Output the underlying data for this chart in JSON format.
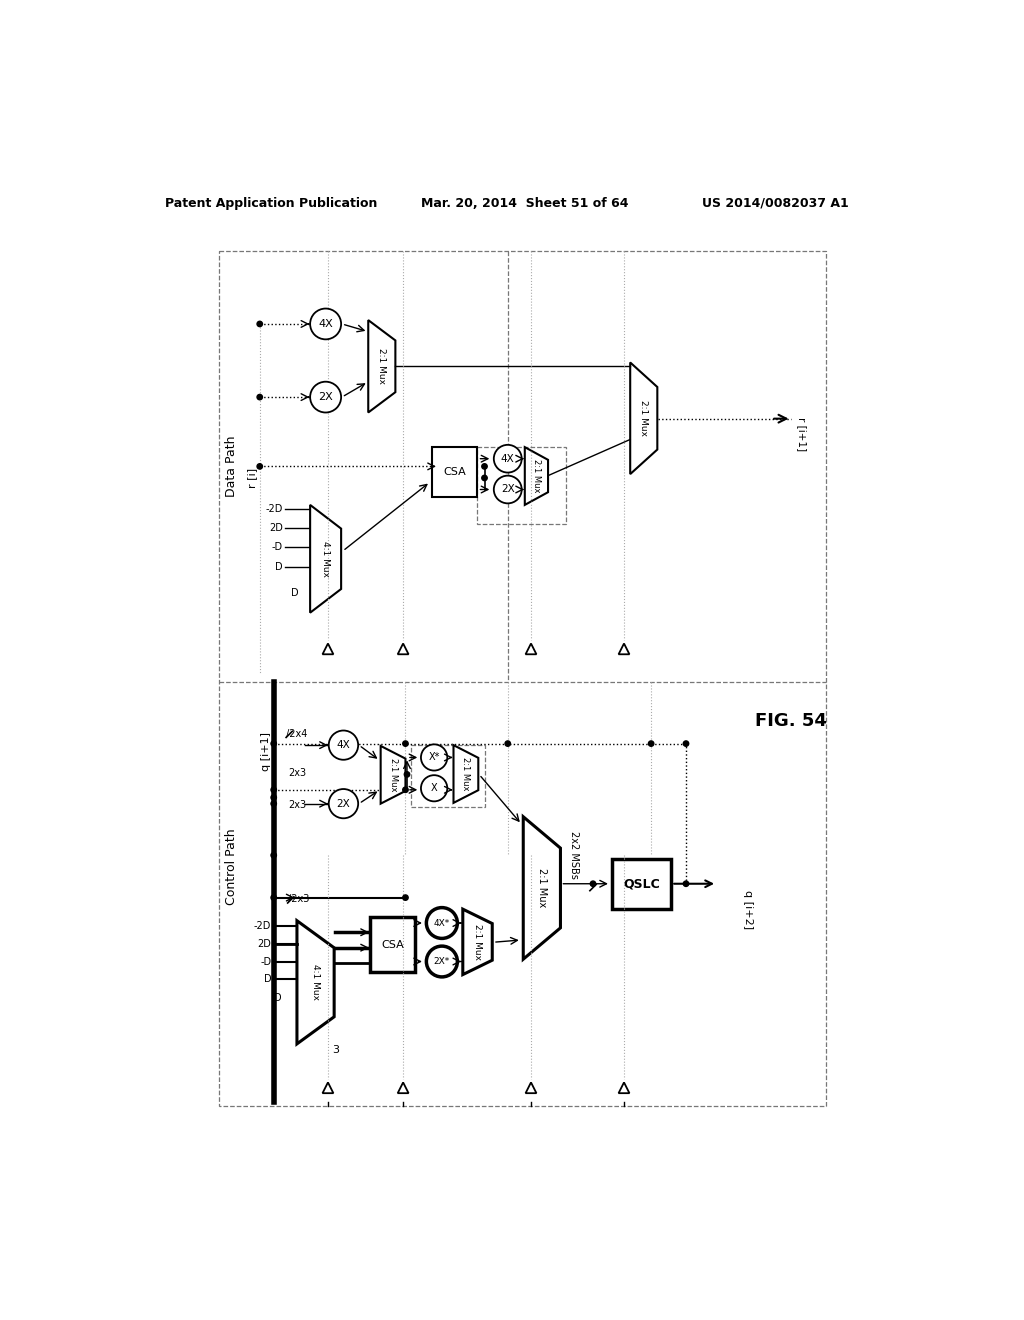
{
  "title_left": "Patent Application Publication",
  "title_mid": "Mar. 20, 2014  Sheet 51 of 64",
  "title_right": "US 2014/0082037 A1",
  "fig_label": "FIG. 54",
  "bg_color": "#ffffff"
}
